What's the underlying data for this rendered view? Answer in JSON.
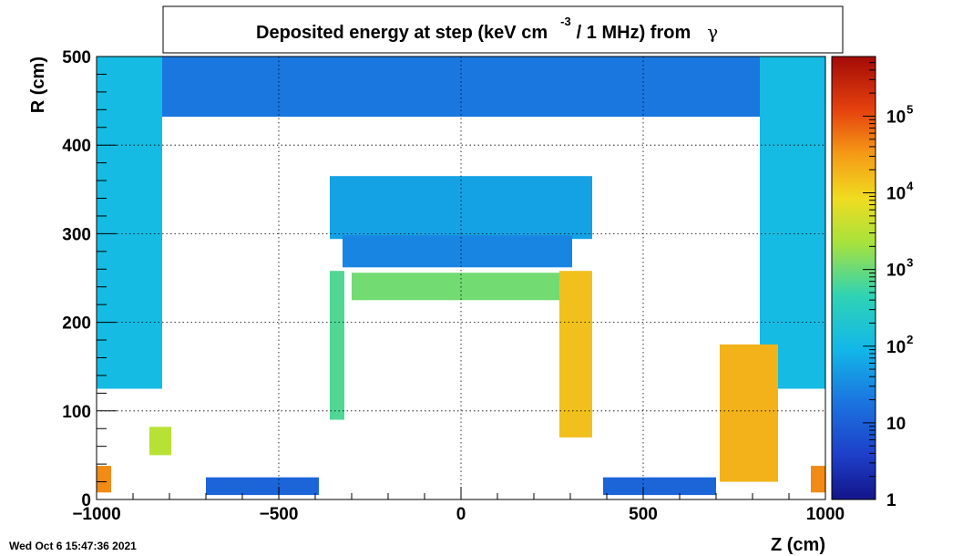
{
  "chart_data": {
    "type": "heatmap",
    "title": {
      "main": "Deposited energy at step (keV cm",
      "sup": "-3",
      "rest": "/ 1 MHz)  from",
      "particle": "γ"
    },
    "xlabel": "Z (cm)",
    "ylabel": "R (cm)",
    "xlim": [
      -1000,
      1000
    ],
    "ylim": [
      0,
      500
    ],
    "xticks": [
      -1000,
      -500,
      0,
      500,
      1000
    ],
    "xtick_labels": [
      "−1000",
      "−500",
      "0",
      "500",
      "1000"
    ],
    "yticks": [
      0,
      100,
      200,
      300,
      400,
      500
    ],
    "ytick_labels": [
      "0",
      "100",
      "200",
      "300",
      "400",
      "500"
    ],
    "z_scale": "log",
    "zlim": [
      1,
      600000
    ],
    "z_ticks": [
      {
        "value": 1,
        "base": "1",
        "exp": ""
      },
      {
        "value": 10,
        "base": "10",
        "exp": ""
      },
      {
        "value": 100,
        "base": "10",
        "exp": "2"
      },
      {
        "value": 1000,
        "base": "10",
        "exp": "3"
      },
      {
        "value": 10000,
        "base": "10",
        "exp": "4"
      },
      {
        "value": 100000,
        "base": "10",
        "exp": "5"
      }
    ],
    "colormap": "rainbow (blue → cyan → green → yellow → red)",
    "grid": true,
    "regions": [
      {
        "name": "Outer top band",
        "z": [
          -1000,
          1000
        ],
        "r": [
          432,
          500
        ],
        "value": 20
      },
      {
        "name": "Left endcap column",
        "z": [
          -820,
          -1000
        ],
        "r": [
          125,
          500
        ],
        "value": 110
      },
      {
        "name": "Right endcap column",
        "z": [
          820,
          1000
        ],
        "r": [
          125,
          500
        ],
        "value": 110
      },
      {
        "name": "Upper barrel block",
        "z": [
          -360,
          360
        ],
        "r": [
          294,
          365
        ],
        "value": 55
      },
      {
        "name": "Barrel slab row",
        "z": [
          -325,
          305
        ],
        "r": [
          262,
          298
        ],
        "value": 28
      },
      {
        "name": "Barrel support ring",
        "z": [
          -300,
          300
        ],
        "r": [
          225,
          256
        ],
        "value": 1100
      },
      {
        "name": "Left barrel wall",
        "z": [
          -360,
          -320
        ],
        "r": [
          90,
          258
        ],
        "value": 700
      },
      {
        "name": "Right barrel wall",
        "z": [
          270,
          360
        ],
        "r": [
          70,
          258
        ],
        "value": 15000
      },
      {
        "name": "Left beamline band",
        "z": [
          -700,
          -390
        ],
        "r": [
          5,
          25
        ],
        "value": 12
      },
      {
        "name": "Right beamline band",
        "z": [
          390,
          700
        ],
        "r": [
          5,
          25
        ],
        "value": 12
      },
      {
        "name": "Left forward hotspot",
        "z": [
          -1000,
          -960
        ],
        "r": [
          8,
          38
        ],
        "value": 40000
      },
      {
        "name": "Left small block",
        "z": [
          -855,
          -795
        ],
        "r": [
          50,
          82
        ],
        "value": 3000
      },
      {
        "name": "Right forward hotspot",
        "z": [
          960,
          1000
        ],
        "r": [
          8,
          38
        ],
        "value": 40000
      },
      {
        "name": "Right forward cluster",
        "z": [
          710,
          870
        ],
        "r": [
          20,
          175
        ],
        "value": 20000
      }
    ]
  },
  "footer": {
    "date": "Wed Oct  6 15:47:36 2021"
  }
}
